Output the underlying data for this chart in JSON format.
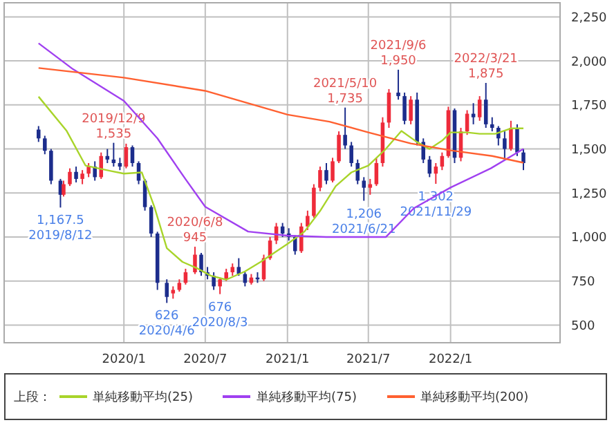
{
  "chart_data": {
    "type": "candlestick",
    "x": [
      "2019-06-24",
      "2019-07-08",
      "2019-07-22",
      "2019-08-12",
      "2019-08-19",
      "2019-09-02",
      "2019-09-16",
      "2019-09-30",
      "2019-10-14",
      "2019-10-28",
      "2019-11-11",
      "2019-11-25",
      "2019-12-09",
      "2019-12-23",
      "2020-01-06",
      "2020-01-20",
      "2020-02-03",
      "2020-02-17",
      "2020-03-02",
      "2020-03-16",
      "2020-04-06",
      "2020-04-20",
      "2020-05-04",
      "2020-05-18",
      "2020-06-08",
      "2020-06-22",
      "2020-07-06",
      "2020-07-20",
      "2020-08-03",
      "2020-08-17",
      "2020-08-31",
      "2020-09-14",
      "2020-09-28",
      "2020-10-12",
      "2020-10-26",
      "2020-11-09",
      "2020-11-23",
      "2020-12-07",
      "2020-12-21",
      "2021-01-04",
      "2021-01-18",
      "2021-02-01",
      "2021-02-15",
      "2021-03-01",
      "2021-03-15",
      "2021-03-29",
      "2021-04-12",
      "2021-04-26",
      "2021-05-10",
      "2021-05-24",
      "2021-06-07",
      "2021-06-21",
      "2021-07-05",
      "2021-07-19",
      "2021-08-02",
      "2021-08-16",
      "2021-09-06",
      "2021-09-20",
      "2021-10-04",
      "2021-10-18",
      "2021-11-01",
      "2021-11-15",
      "2021-11-29",
      "2021-12-13",
      "2021-12-27",
      "2022-01-10",
      "2022-01-24",
      "2022-02-07",
      "2022-02-21",
      "2022-03-07",
      "2022-03-21",
      "2022-04-04",
      "2022-04-18",
      "2022-05-02",
      "2022-05-16",
      "2022-05-30",
      "2022-06-13"
    ],
    "ohlc": [
      [
        1610,
        1630,
        1540,
        1560
      ],
      [
        1560,
        1575,
        1470,
        1490
      ],
      [
        1490,
        1500,
        1300,
        1320
      ],
      [
        1320,
        1330,
        1167.5,
        1240
      ],
      [
        1240,
        1320,
        1230,
        1300
      ],
      [
        1300,
        1390,
        1290,
        1370
      ],
      [
        1370,
        1400,
        1310,
        1330
      ],
      [
        1330,
        1380,
        1300,
        1360
      ],
      [
        1360,
        1420,
        1340,
        1400
      ],
      [
        1400,
        1430,
        1320,
        1340
      ],
      [
        1340,
        1480,
        1330,
        1460
      ],
      [
        1460,
        1500,
        1420,
        1440
      ],
      [
        1440,
        1535,
        1400,
        1420
      ],
      [
        1420,
        1450,
        1380,
        1400
      ],
      [
        1400,
        1530,
        1390,
        1510
      ],
      [
        1510,
        1520,
        1400,
        1420
      ],
      [
        1420,
        1430,
        1300,
        1320
      ],
      [
        1320,
        1330,
        1150,
        1170
      ],
      [
        1170,
        1180,
        1000,
        1020
      ],
      [
        1020,
        1030,
        700,
        740
      ],
      [
        740,
        760,
        626,
        660
      ],
      [
        680,
        720,
        650,
        700
      ],
      [
        700,
        760,
        690,
        740
      ],
      [
        740,
        820,
        730,
        800
      ],
      [
        800,
        945,
        790,
        900
      ],
      [
        900,
        910,
        780,
        800
      ],
      [
        800,
        830,
        760,
        780
      ],
      [
        780,
        800,
        700,
        720
      ],
      [
        720,
        770,
        676,
        760
      ],
      [
        760,
        820,
        750,
        800
      ],
      [
        800,
        850,
        780,
        830
      ],
      [
        830,
        880,
        780,
        790
      ],
      [
        790,
        800,
        720,
        740
      ],
      [
        740,
        790,
        730,
        770
      ],
      [
        770,
        800,
        740,
        760
      ],
      [
        760,
        900,
        750,
        880
      ],
      [
        880,
        1000,
        870,
        980
      ],
      [
        980,
        1080,
        960,
        1060
      ],
      [
        1060,
        1080,
        1000,
        1020
      ],
      [
        1020,
        1050,
        980,
        1000
      ],
      [
        1000,
        1010,
        900,
        920
      ],
      [
        920,
        1080,
        910,
        1060
      ],
      [
        1060,
        1150,
        1040,
        1120
      ],
      [
        1120,
        1300,
        1110,
        1280
      ],
      [
        1280,
        1400,
        1260,
        1380
      ],
      [
        1380,
        1420,
        1300,
        1320
      ],
      [
        1320,
        1450,
        1310,
        1430
      ],
      [
        1430,
        1600,
        1420,
        1580
      ],
      [
        1580,
        1735,
        1500,
        1520
      ],
      [
        1520,
        1540,
        1400,
        1420
      ],
      [
        1420,
        1440,
        1300,
        1320
      ],
      [
        1320,
        1340,
        1206,
        1280
      ],
      [
        1280,
        1330,
        1240,
        1300
      ],
      [
        1300,
        1450,
        1290,
        1420
      ],
      [
        1420,
        1680,
        1400,
        1650
      ],
      [
        1650,
        1840,
        1620,
        1820
      ],
      [
        1820,
        1950,
        1780,
        1800
      ],
      [
        1800,
        1820,
        1640,
        1660
      ],
      [
        1660,
        1800,
        1640,
        1780
      ],
      [
        1780,
        1820,
        1520,
        1540
      ],
      [
        1540,
        1560,
        1420,
        1440
      ],
      [
        1440,
        1460,
        1340,
        1360
      ],
      [
        1360,
        1420,
        1302,
        1400
      ],
      [
        1400,
        1480,
        1380,
        1460
      ],
      [
        1460,
        1740,
        1450,
        1720
      ],
      [
        1720,
        1730,
        1420,
        1450
      ],
      [
        1450,
        1620,
        1430,
        1600
      ],
      [
        1600,
        1720,
        1580,
        1700
      ],
      [
        1700,
        1760,
        1640,
        1680
      ],
      [
        1680,
        1800,
        1660,
        1780
      ],
      [
        1780,
        1875,
        1620,
        1640
      ],
      [
        1640,
        1680,
        1600,
        1620
      ],
      [
        1620,
        1630,
        1520,
        1560
      ],
      [
        1560,
        1600,
        1440,
        1500
      ],
      [
        1500,
        1660,
        1490,
        1620
      ],
      [
        1620,
        1640,
        1460,
        1480
      ],
      [
        1480,
        1500,
        1380,
        1420
      ]
    ],
    "series": [
      {
        "type": "line",
        "name": "単純移動平均(25)",
        "color": "#a8d42a",
        "x": [
          "2019-06-24",
          "2019-08-26",
          "2019-10-07",
          "2019-12-02",
          "2020-01-01",
          "2020-02-10",
          "2020-03-09",
          "2020-04-06",
          "2020-05-11",
          "2020-06-15",
          "2020-07-13",
          "2020-08-17",
          "2020-09-28",
          "2020-11-02",
          "2021-01-01",
          "2021-02-08",
          "2021-03-15",
          "2021-04-19",
          "2021-05-24",
          "2021-07-01",
          "2021-08-09",
          "2021-09-13",
          "2021-10-18",
          "2021-11-15",
          "2021-12-13",
          "2022-01-01",
          "2022-02-07",
          "2022-03-07",
          "2022-04-11",
          "2022-05-16",
          "2022-06-13"
        ],
        "values": [
          1797,
          1602,
          1406,
          1375,
          1360,
          1367,
          1172,
          937,
          859,
          820,
          781,
          758,
          805,
          859,
          961,
          1031,
          1148,
          1289,
          1367,
          1406,
          1500,
          1602,
          1539,
          1500,
          1547,
          1594,
          1594,
          1586,
          1586,
          1617,
          1617
        ]
      },
      {
        "type": "line",
        "name": "単純移動平均(75)",
        "color": "#a040f0",
        "x": [
          "2019-06-24",
          "2019-09-09",
          "2020-01-01",
          "2020-03-16",
          "2020-05-18",
          "2020-07-01",
          "2020-10-05",
          "2021-01-01",
          "2021-03-29",
          "2021-07-01",
          "2021-08-09",
          "2021-10-11",
          "2022-01-01",
          "2022-04-01",
          "2022-06-13"
        ],
        "values": [
          2100,
          1953,
          1773,
          1560,
          1328,
          1172,
          1031,
          1008,
          1000,
          1000,
          1000,
          1164,
          1281,
          1390,
          1500
        ]
      },
      {
        "type": "line",
        "name": "単純移動平均(200)",
        "color": "#ff6030",
        "x": [
          "2019-06-24",
          "2020-01-01",
          "2020-07-01",
          "2021-01-01",
          "2021-04-05",
          "2021-07-01",
          "2021-10-04",
          "2022-01-01",
          "2022-04-04",
          "2022-06-13"
        ],
        "values": [
          1960,
          1905,
          1830,
          1695,
          1655,
          1594,
          1531,
          1492,
          1460,
          1422
        ]
      }
    ],
    "xlim": [
      "2019-04-08",
      "2022-09-03"
    ],
    "xticks": [
      {
        "value": "2020-01-01",
        "label": "2020/1"
      },
      {
        "value": "2020-07-01",
        "label": "2020/7"
      },
      {
        "value": "2021-01-01",
        "label": "2021/1"
      },
      {
        "value": "2021-07-01",
        "label": "2021/7"
      },
      {
        "value": "2022-01-01",
        "label": "2022/1"
      }
    ],
    "ylim": [
      400,
      2330
    ],
    "yticks": [
      {
        "value": 500,
        "label": "500"
      },
      {
        "value": 750,
        "label": "750"
      },
      {
        "value": 1000,
        "label": "1,000"
      },
      {
        "value": 1250,
        "label": "1,250"
      },
      {
        "value": 1500,
        "label": "1,500"
      },
      {
        "value": 1750,
        "label": "1,750"
      },
      {
        "value": 2000,
        "label": "2,000"
      },
      {
        "value": 2250,
        "label": "2,250"
      }
    ],
    "grid": true,
    "legend": "bottom",
    "legend_title": "上段：",
    "annotations": [
      {
        "text": "2019/12/9\n1,535",
        "x": "2019-12-09",
        "y": 1535
      },
      {
        "text": "1,167.5\n2019/8/12",
        "x": "2019-08-12",
        "y": 1167.5
      },
      {
        "text": "2020/6/8\n945",
        "x": "2020-06-08",
        "y": 945
      },
      {
        "text": "626\n2020/4/6",
        "x": "2020-04-06",
        "y": 626
      },
      {
        "text": "676\n2020/8/3",
        "x": "2020-08-03",
        "y": 676
      },
      {
        "text": "2021/5/10\n1,735",
        "x": "2021-05-10",
        "y": 1735
      },
      {
        "text": "1,206\n2021/6/21",
        "x": "2021-06-21",
        "y": 1206
      },
      {
        "text": "2021/9/6\n1,950",
        "x": "2021-09-06",
        "y": 1950
      },
      {
        "text": "1,302\n2021/11/29",
        "x": "2021-11-29",
        "y": 1302
      },
      {
        "text": "2022/3/21\n1,875",
        "x": "2022-03-21",
        "y": 1875
      }
    ]
  }
}
